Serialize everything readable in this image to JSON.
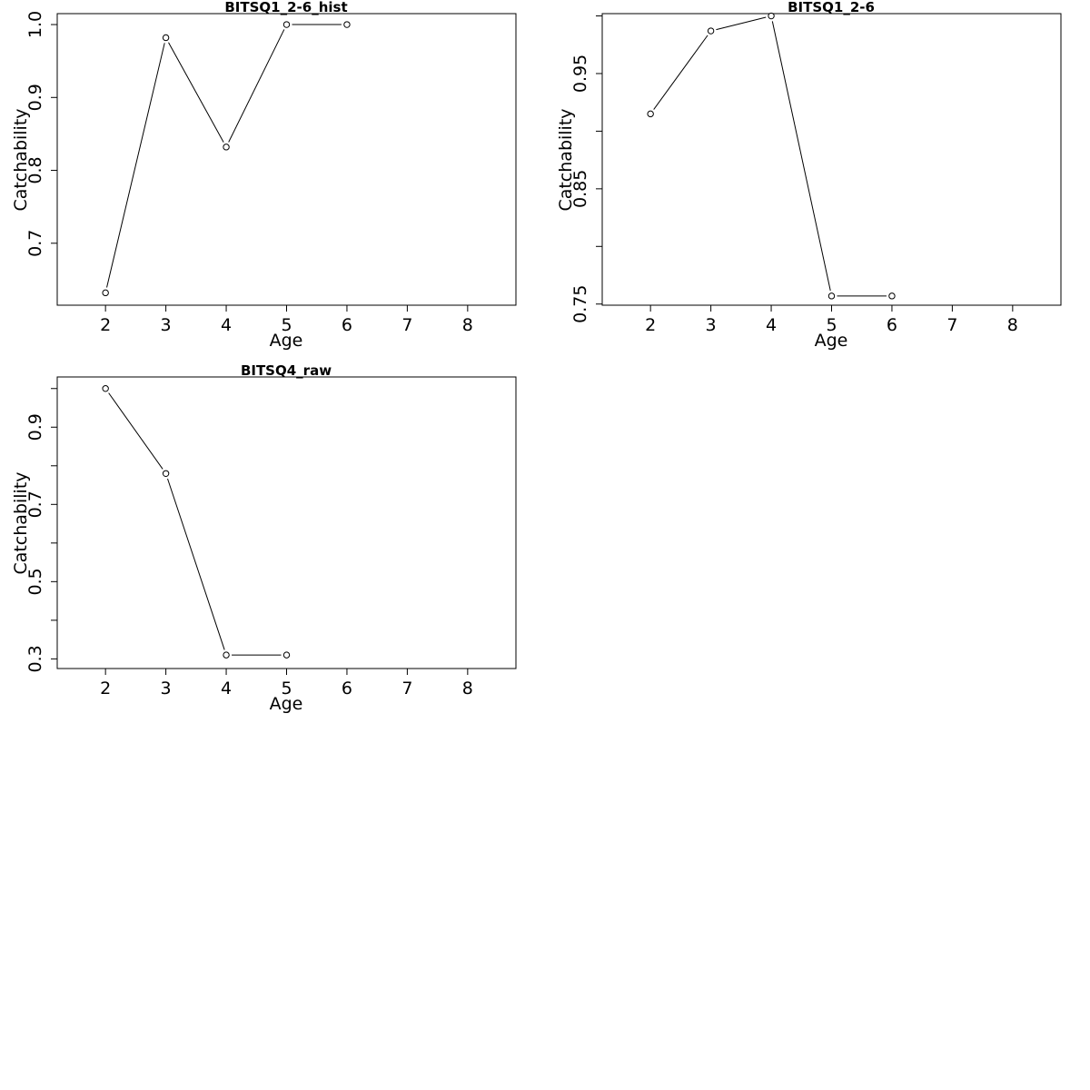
{
  "chart_data": [
    {
      "type": "line",
      "title": "BITSQ1_2-6_hist",
      "xlabel": "Age",
      "ylabel": "Catchability",
      "xlim": [
        1.2,
        8.8
      ],
      "ylim": [
        0.615,
        1.015
      ],
      "x_ticks": [
        2,
        3,
        4,
        5,
        6,
        7,
        8
      ],
      "y_ticks": [
        0.7,
        0.8,
        0.9,
        1.0
      ],
      "y_tick_labels": [
        "0.7",
        "0.8",
        "0.9",
        "1.0"
      ],
      "grid": false,
      "marker": "open-circle",
      "x": [
        2,
        3,
        4,
        5,
        6
      ],
      "y": [
        0.632,
        0.982,
        0.832,
        1.0,
        1.0
      ]
    },
    {
      "type": "line",
      "title": "BITSQ1_2-6",
      "xlabel": "Age",
      "ylabel": "Catchability",
      "xlim": [
        1.2,
        8.8
      ],
      "ylim": [
        0.749,
        1.002
      ],
      "x_ticks": [
        2,
        3,
        4,
        5,
        6,
        7,
        8
      ],
      "y_ticks": [
        0.75,
        0.8,
        0.85,
        0.9,
        0.95,
        1.0
      ],
      "y_tick_labels": [
        "0.75",
        "",
        "0.85",
        "",
        "0.95",
        ""
      ],
      "grid": false,
      "marker": "open-circle",
      "x": [
        2,
        3,
        4,
        5,
        6
      ],
      "y": [
        0.915,
        0.987,
        1.0,
        0.757,
        0.757
      ]
    },
    {
      "type": "line",
      "title": "BITSQ4_raw",
      "xlabel": "Age",
      "ylabel": "Catchability",
      "xlim": [
        1.2,
        8.8
      ],
      "ylim": [
        0.275,
        1.03
      ],
      "x_ticks": [
        2,
        3,
        4,
        5,
        6,
        7,
        8
      ],
      "y_ticks": [
        0.3,
        0.4,
        0.5,
        0.6,
        0.7,
        0.8,
        0.9,
        1.0
      ],
      "y_tick_labels": [
        "0.3",
        "",
        "0.5",
        "",
        "0.7",
        "",
        "0.9",
        ""
      ],
      "grid": false,
      "marker": "open-circle",
      "x": [
        2,
        3,
        4,
        5
      ],
      "y": [
        1.0,
        0.78,
        0.31,
        0.31
      ]
    }
  ]
}
